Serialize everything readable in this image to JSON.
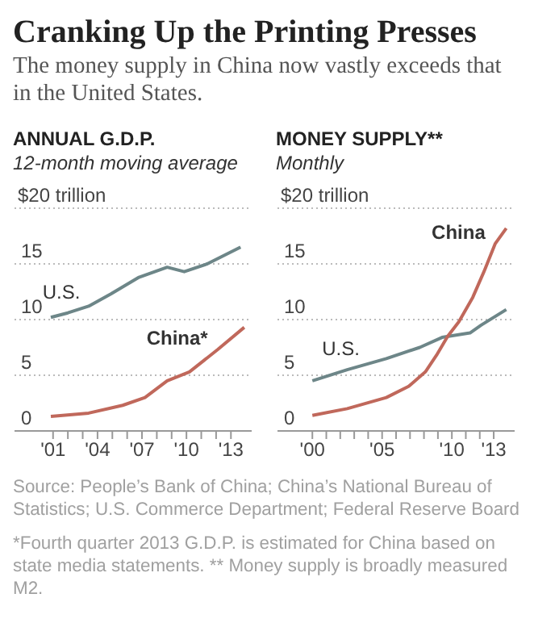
{
  "chart_data": [
    {
      "type": "other",
      "title": "Cranking Up the Printing Presses",
      "subtitle": "The money supply in China now vastly exceeds that in the United States.",
      "annotations": [
        "Source: People’s Bank of China; China’s National Bureau of Statistics; U.S. Commerce Department; Federal Reserve Board",
        "*Fourth quarter 2013 G.D.P. is estimated for China based on state media statements. ** Money supply is broadly measured M2."
      ]
    },
    {
      "type": "line",
      "title": "ANNUAL G.D.P.",
      "subtitle": "12-month moving average",
      "line_style": "solid",
      "grid": "y",
      "xlim": [
        1998.4,
        2014.4
      ],
      "xticks": [
        {
          "value": 2001,
          "label": "'01"
        },
        {
          "value": 2002,
          "label": null
        },
        {
          "value": 2003,
          "label": null
        },
        {
          "value": 2004,
          "label": "'04"
        },
        {
          "value": 2005,
          "label": null
        },
        {
          "value": 2006,
          "label": null
        },
        {
          "value": 2007,
          "label": "'07"
        },
        {
          "value": 2008,
          "label": null
        },
        {
          "value": 2009,
          "label": null
        },
        {
          "value": 2010,
          "label": "'10"
        },
        {
          "value": 2011,
          "label": null
        },
        {
          "value": 2012,
          "label": null
        },
        {
          "value": 2013,
          "label": "'13"
        }
      ],
      "ylim": [
        0,
        20
      ],
      "yticks": [
        0,
        5,
        10,
        15,
        {
          "value": 20,
          "label": "$20 trillion"
        }
      ],
      "series": [
        {
          "name": "U.S.",
          "color": "#6d8688",
          "x": [
            2000.85,
            2002,
            2003.4,
            2004.9,
            2006.8,
            2008.7,
            2009.85,
            2011.4,
            2013.65
          ],
          "values": [
            10.2,
            10.6,
            11.2,
            12.3,
            13.8,
            14.7,
            14.3,
            15.0,
            16.5
          ]
        },
        {
          "name": "China*",
          "color": "#c0685b",
          "x": [
            2000.85,
            2003.4,
            2005.7,
            2007.2,
            2008.7,
            2010.2,
            2012.1,
            2013.9
          ],
          "values": [
            1.3,
            1.6,
            2.3,
            3.0,
            4.5,
            5.3,
            7.3,
            9.3
          ]
        }
      ]
    },
    {
      "type": "line",
      "title": "MONEY SUPPLY**",
      "subtitle": "Monthly",
      "line_style": "solid",
      "grid": "y",
      "xlim": [
        1997.5,
        2014.5
      ],
      "xticks": [
        {
          "value": 2000,
          "label": "'00"
        },
        {
          "value": 2001,
          "label": null
        },
        {
          "value": 2002,
          "label": null
        },
        {
          "value": 2003,
          "label": null
        },
        {
          "value": 2004,
          "label": null
        },
        {
          "value": 2005,
          "label": "'05"
        },
        {
          "value": 2006,
          "label": null
        },
        {
          "value": 2007,
          "label": null
        },
        {
          "value": 2008,
          "label": null
        },
        {
          "value": 2009,
          "label": null
        },
        {
          "value": 2010,
          "label": "'10"
        },
        {
          "value": 2011,
          "label": null
        },
        {
          "value": 2012,
          "label": null
        },
        {
          "value": 2013,
          "label": "'13"
        }
      ],
      "ylim": [
        0,
        20
      ],
      "yticks": [
        0,
        5,
        10,
        15,
        {
          "value": 20,
          "label": "$20 trillion"
        }
      ],
      "series": [
        {
          "name": "U.S.",
          "color": "#6d8688",
          "x": [
            2000,
            2002.5,
            2005.3,
            2007.7,
            2009.3,
            2011.3,
            2012.1,
            2013.9
          ],
          "values": [
            4.5,
            5.5,
            6.5,
            7.5,
            8.4,
            8.8,
            9.5,
            10.9
          ]
        },
        {
          "name": "China",
          "color": "#c0685b",
          "x": [
            2000,
            2002.5,
            2005.3,
            2006.9,
            2008.1,
            2008.9,
            2009.7,
            2010.5,
            2011.5,
            2012.3,
            2013.1,
            2013.9
          ],
          "values": [
            1.4,
            2.0,
            3.0,
            4.0,
            5.3,
            6.8,
            8.5,
            9.8,
            12.0,
            14.3,
            16.8,
            18.2
          ]
        }
      ]
    }
  ]
}
